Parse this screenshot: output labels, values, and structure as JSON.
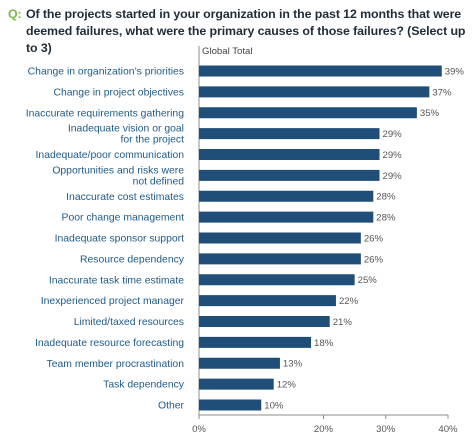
{
  "question": {
    "prefix": "Q:",
    "text": "Of the projects started in your organization in the past 12 months that were deemed failures, what were the primary causes of those failures? (Select up to 3)"
  },
  "colors": {
    "bar": "#1f4e79",
    "question_prefix": "#7ab648",
    "category_text": "#1f5a8a"
  },
  "chart_data": {
    "type": "bar",
    "orientation": "horizontal",
    "series": [
      {
        "name": "Global Total",
        "values": [
          39,
          37,
          35,
          29,
          29,
          29,
          28,
          28,
          26,
          26,
          25,
          22,
          21,
          18,
          13,
          12,
          10
        ]
      }
    ],
    "categories": [
      [
        "Change in organization’s priorities"
      ],
      [
        "Change in project objectives"
      ],
      [
        "Inaccurate requirements gathering"
      ],
      [
        "Inadequate vision or goal",
        "for the project"
      ],
      [
        "Inadequate/poor communication"
      ],
      [
        "Opportunities and risks were",
        "not defined"
      ],
      [
        "Inaccurate cost estimates"
      ],
      [
        "Poor change management"
      ],
      [
        "Inadequate sponsor support"
      ],
      [
        "Resource dependency"
      ],
      [
        "Inaccurate task time estimate"
      ],
      [
        "Inexperienced project manager"
      ],
      [
        "Limited/taxed resources"
      ],
      [
        "Inadequate resource forecasting"
      ],
      [
        "Team member procrastination"
      ],
      [
        "Task dependency"
      ],
      [
        "Other"
      ]
    ],
    "value_labels": [
      "39%",
      "37%",
      "35%",
      "29%",
      "29%",
      "29%",
      "28%",
      "28%",
      "26%",
      "26%",
      "25%",
      "22%",
      "21%",
      "18%",
      "13%",
      "12%",
      "10%"
    ],
    "x_ticks": [
      0,
      20,
      30,
      40
    ],
    "x_tick_labels": [
      "0%",
      "20%",
      "30%",
      "40%"
    ],
    "xlim": [
      0,
      40
    ],
    "grid": false
  }
}
